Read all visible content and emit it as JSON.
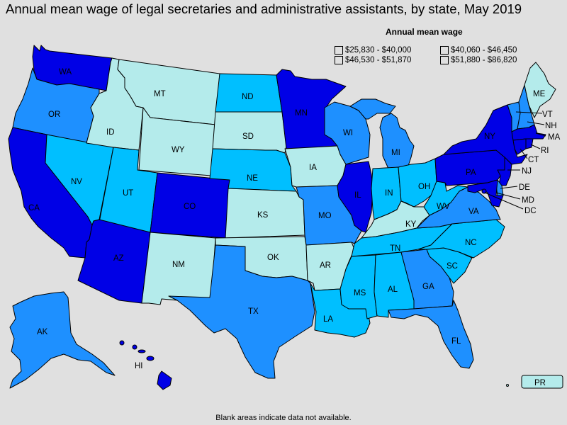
{
  "title": "Annual mean wage of legal secretaries and administrative assistants, by state, May 2019",
  "legend": {
    "title": "Annual mean wage",
    "items": [
      {
        "label": "$25,830 - $40,000",
        "color": "#b4ebeb"
      },
      {
        "label": "$40,060 - $46,450",
        "color": "#00bfff"
      },
      {
        "label": "$46,530 - $51,870",
        "color": "#1e90ff"
      },
      {
        "label": "$51,880 - $86,820",
        "color": "#0000e6"
      }
    ]
  },
  "footnote": "Blank areas indicate data not available.",
  "states": {
    "WA": {
      "label": "WA",
      "bin": 4
    },
    "OR": {
      "label": "OR",
      "bin": 3
    },
    "CA": {
      "label": "CA",
      "bin": 4
    },
    "NV": {
      "label": "NV",
      "bin": 2
    },
    "ID": {
      "label": "ID",
      "bin": 1
    },
    "MT": {
      "label": "MT",
      "bin": 1
    },
    "WY": {
      "label": "WY",
      "bin": 1
    },
    "UT": {
      "label": "UT",
      "bin": 2
    },
    "AZ": {
      "label": "AZ",
      "bin": 4
    },
    "CO": {
      "label": "CO",
      "bin": 4
    },
    "NM": {
      "label": "NM",
      "bin": 1
    },
    "ND": {
      "label": "ND",
      "bin": 2
    },
    "SD": {
      "label": "SD",
      "bin": 1
    },
    "NE": {
      "label": "NE",
      "bin": 2
    },
    "KS": {
      "label": "KS",
      "bin": 1
    },
    "OK": {
      "label": "OK",
      "bin": 1
    },
    "TX": {
      "label": "TX",
      "bin": 3
    },
    "MN": {
      "label": "MN",
      "bin": 4
    },
    "IA": {
      "label": "IA",
      "bin": 1
    },
    "MO": {
      "label": "MO",
      "bin": 3
    },
    "AR": {
      "label": "AR",
      "bin": 1
    },
    "LA": {
      "label": "LA",
      "bin": 2
    },
    "WI": {
      "label": "WI",
      "bin": 3
    },
    "IL": {
      "label": "IL",
      "bin": 4
    },
    "MI": {
      "label": "MI",
      "bin": 3
    },
    "IN": {
      "label": "IN",
      "bin": 2
    },
    "OH": {
      "label": "OH",
      "bin": 2
    },
    "KY": {
      "label": "KY",
      "bin": 1
    },
    "TN": {
      "label": "TN",
      "bin": 2
    },
    "MS": {
      "label": "MS",
      "bin": 2
    },
    "AL": {
      "label": "AL",
      "bin": 2
    },
    "GA": {
      "label": "GA",
      "bin": 3
    },
    "FL": {
      "label": "FL",
      "bin": 3
    },
    "SC": {
      "label": "SC",
      "bin": 2
    },
    "NC": {
      "label": "NC",
      "bin": 2
    },
    "VA": {
      "label": "VA",
      "bin": 3
    },
    "WV": {
      "label": "WV",
      "bin": 2
    },
    "PA": {
      "label": "PA",
      "bin": 4
    },
    "NY": {
      "label": "NY",
      "bin": 4
    },
    "VT": {
      "label": "VT",
      "bin": 3
    },
    "NH": {
      "label": "NH",
      "bin": 3
    },
    "ME": {
      "label": "ME",
      "bin": 1
    },
    "MA": {
      "label": "MA",
      "bin": 4
    },
    "RI": {
      "label": "RI",
      "bin": 4
    },
    "CT": {
      "label": "CT",
      "bin": 4
    },
    "NJ": {
      "label": "NJ",
      "bin": 4
    },
    "DE": {
      "label": "DE",
      "bin": 3
    },
    "MD": {
      "label": "MD",
      "bin": 4
    },
    "DC": {
      "label": "DC",
      "bin": 4
    },
    "AK": {
      "label": "AK",
      "bin": 3
    },
    "HI": {
      "label": "HI",
      "bin": 4
    },
    "PR": {
      "label": "PR",
      "bin": 1
    }
  }
}
